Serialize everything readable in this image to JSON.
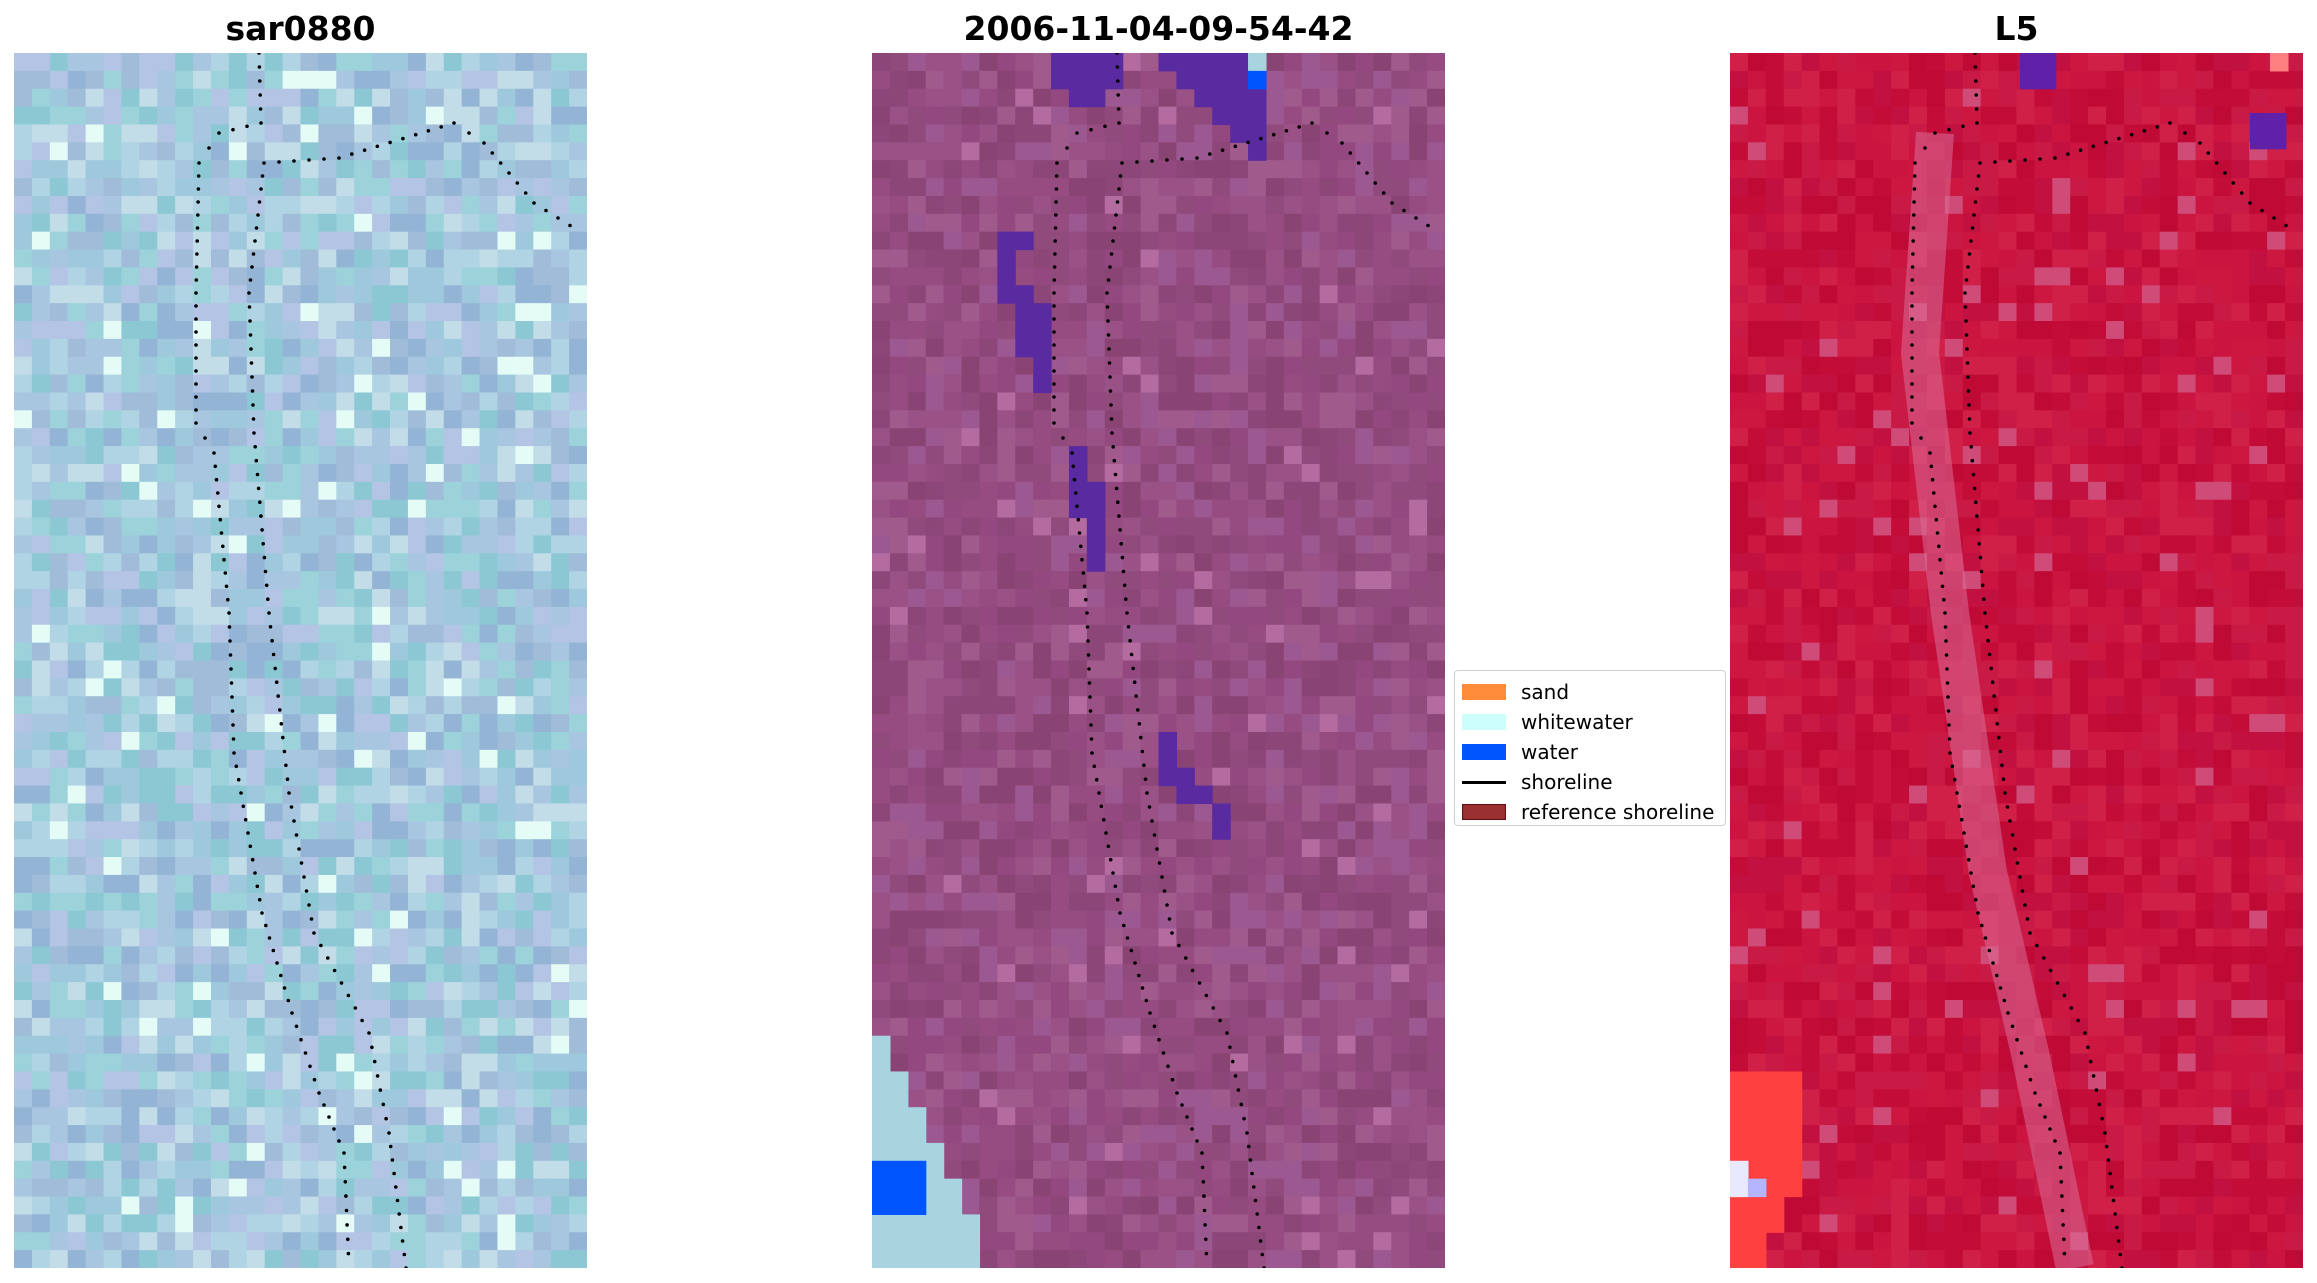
{
  "figure": {
    "panels": [
      {
        "title": "sar0880",
        "base_color": "#a4c4d8",
        "palette": [
          "#a0bcd8",
          "#9ec8dc",
          "#a8c6e0",
          "#94b4d6",
          "#b0d4e4",
          "#9cd2da",
          "#b4c4e4",
          "#8cc8d4",
          "#c2dce8"
        ],
        "bright_color": "#e4fbf6",
        "has_mask": false
      },
      {
        "title": "2006-11-04-09-54-42",
        "base_color": "#91497c",
        "palette": [
          "#8c4678",
          "#964c80",
          "#9a5286",
          "#8a4474",
          "#a05a8c",
          "#904a7c",
          "#93487f",
          "#9c5890"
        ],
        "bright_color": "#b46ca0",
        "has_mask": true,
        "mask_colors": {
          "water_class": "#5a2ba0",
          "water": "#0055ff",
          "whitewater": "#a8d4e0"
        }
      },
      {
        "title": "L5",
        "base_color": "#c8103c",
        "palette": [
          "#c40c38",
          "#cc1840",
          "#c21040",
          "#d02048",
          "#bf0a36",
          "#c81a44",
          "#cb1440"
        ],
        "bright_color": "#d04c78",
        "has_mask": false,
        "corner_color": "#ff4040"
      }
    ],
    "legend": {
      "items": [
        {
          "label": "sand",
          "type": "patch",
          "color": "#ff8c3a"
        },
        {
          "label": "whitewater",
          "type": "patch",
          "color": "#ccfffc"
        },
        {
          "label": "water",
          "type": "patch",
          "color": "#0055ff"
        },
        {
          "label": "shoreline",
          "type": "line",
          "color": "#000000"
        },
        {
          "label": "reference shoreline",
          "type": "patch",
          "color": "#9a3030"
        }
      ]
    }
  }
}
